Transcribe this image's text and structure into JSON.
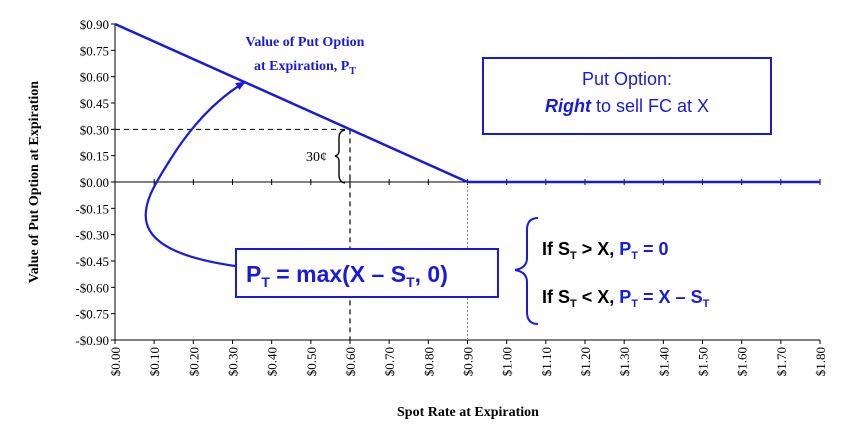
{
  "chart_data": {
    "type": "line",
    "title": "",
    "xlabel": "Spot Rate at Expiration",
    "ylabel": "Value of Put Option at Expiration",
    "xlim": [
      0.0,
      1.8
    ],
    "ylim": [
      -0.9,
      0.9
    ],
    "x_ticks": [
      "$0.00",
      "$0.10",
      "$0.20",
      "$0.30",
      "$0.40",
      "$0.50",
      "$0.60",
      "$0.70",
      "$0.80",
      "$0.90",
      "$1.00",
      "$1.10",
      "$1.20",
      "$1.30",
      "$1.40",
      "$1.50",
      "$1.60",
      "$1.70",
      "$1.80"
    ],
    "y_ticks": [
      "$0.90",
      "$0.75",
      "$0.60",
      "$0.45",
      "$0.30",
      "$0.15",
      "$0.00",
      "-$0.15",
      "-$0.30",
      "-$0.45",
      "-$0.60",
      "-$0.75",
      "-$0.90"
    ],
    "series": [
      {
        "x": [
          0.0,
          0.9,
          1.8
        ],
        "y": [
          0.9,
          0.0,
          0.0
        ]
      }
    ],
    "reference_point": {
      "x": 0.6,
      "y": 0.3
    },
    "strike_x": 0.9,
    "brace_label": "30¢",
    "curve_label": {
      "line1": "Value of Put Option",
      "line2": "at Expiration, P",
      "sub": "T"
    },
    "grid": false,
    "legend": "none",
    "colors": {
      "line": "#1a1adf",
      "text_blue": "#1a1adf",
      "axis": "#000000"
    }
  },
  "info_box": {
    "line1": "Put Option:",
    "line2_bold": "Right",
    "line2_rest": " to sell FC at X"
  },
  "formula_box": {
    "p": "P",
    "t": "T",
    "mid": " = max(X – S",
    "end": ", 0)"
  },
  "conditions": [
    {
      "if": "If S",
      "sub": "T",
      "op": " > X, ",
      "p": "P",
      "psub": "T",
      "result": " = 0"
    },
    {
      "if": "If S",
      "sub": "T",
      "op": " < X, ",
      "p": "P",
      "psub": "T",
      "result": " = X – S",
      "rsub": "T"
    }
  ]
}
